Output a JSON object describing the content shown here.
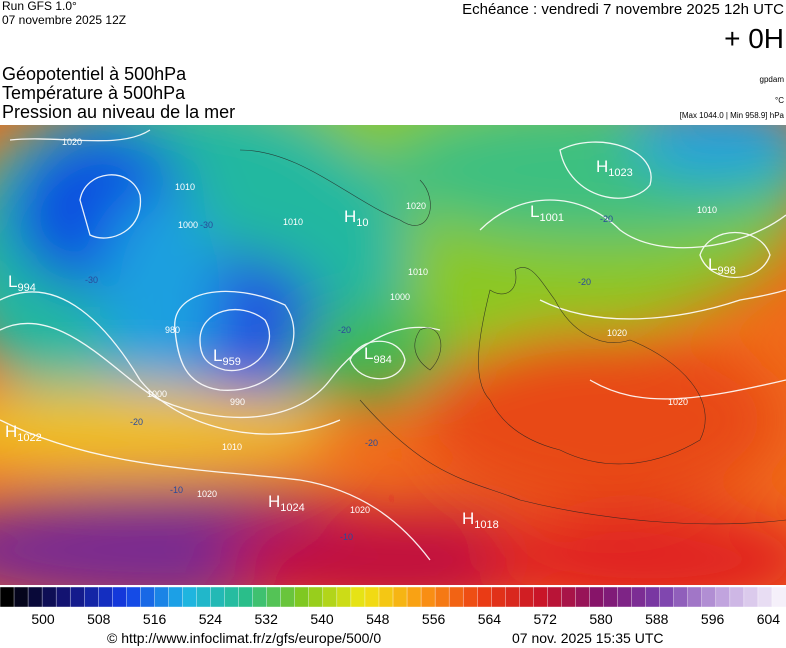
{
  "header": {
    "run": "Run GFS 1.0°",
    "run_date": "07 novembre 2025 12Z",
    "echeance": "Echéance : vendredi 7 novembre 2025 12h UTC",
    "offset": "+ 0H"
  },
  "layers": [
    "Géopotentiel à 500hPa",
    "Température à 500hPa",
    "Pression au niveau de la mer"
  ],
  "units": {
    "geopotential": "gpdam",
    "temperature": "°C",
    "pressure": "[Max 1044.0 | Min 958.9] hPa"
  },
  "pressure_centers": [
    {
      "letter": "H",
      "value": "1022"
    },
    {
      "letter": "L",
      "value": "994"
    },
    {
      "letter": "L",
      "value": "959"
    },
    {
      "letter": "L",
      "value": "984"
    },
    {
      "letter": "H",
      "value": "10"
    },
    {
      "letter": "L",
      "value": "1001"
    },
    {
      "letter": "H",
      "value": "1023"
    },
    {
      "letter": "L",
      "value": "998"
    },
    {
      "letter": "H",
      "value": "1024"
    },
    {
      "letter": "H",
      "value": "1018"
    }
  ],
  "isobar_labels": [
    "1020",
    "1010",
    "1000",
    "990",
    "980",
    "1000",
    "1010",
    "1020",
    "1020",
    "1010",
    "1000",
    "1010",
    "1010",
    "1020",
    "1020",
    "1020"
  ],
  "temperature_labels": [
    "-30",
    "-30",
    "-20",
    "-20",
    "-20",
    "-10",
    "-10",
    "-20",
    "-20"
  ],
  "scale": {
    "labels": [
      500,
      508,
      516,
      524,
      532,
      540,
      548,
      556,
      564,
      572,
      580,
      588,
      596,
      604
    ]
  },
  "footer": {
    "url": "© http://www.infoclimat.fr/z/gfs/europe/500/0",
    "time": "07 nov. 2025 15:35 UTC"
  }
}
